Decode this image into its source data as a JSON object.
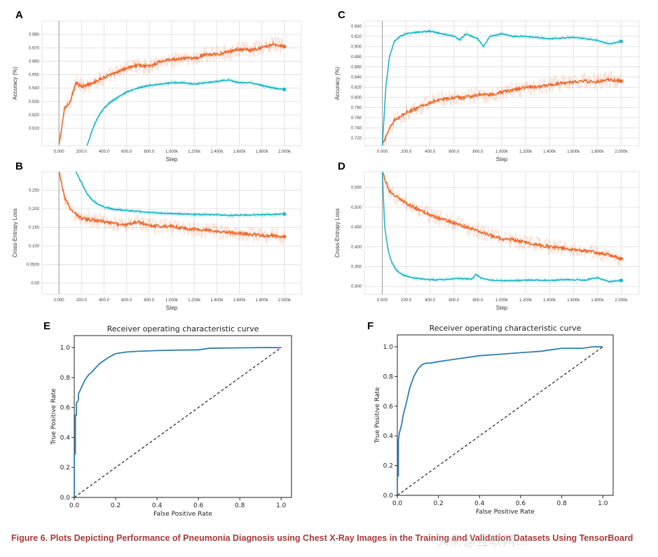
{
  "caption": "Figure 6.  Plots Depicting Performance of Pneumonia Diagnosis using Chest X-Ray Images in the Training and Validation Datasets Using TensorBoard",
  "watermark": "头条@互联网...",
  "colors": {
    "orange": "#ee6a2e",
    "teal": "#20b7c6",
    "roc": "#2e7eb2",
    "caption": "#a83a3a"
  },
  "chart_data": [
    {
      "id": "A",
      "type": "line",
      "letter": "A",
      "title": "",
      "xlabel": "Step",
      "ylabel": "Accuracy (%)",
      "xlim": [
        -150,
        2150
      ],
      "ylim": [
        0.897,
        0.99
      ],
      "xticks": [
        0,
        200,
        400,
        600,
        800,
        1000,
        1200,
        1400,
        1600,
        1800,
        2000
      ],
      "xtick_labels": [
        "0.000",
        "200.0",
        "400.0",
        "600.0",
        "800.0",
        "1.000k",
        "1.200k",
        "1.400k",
        "1.600k",
        "1.800k",
        "2.000k"
      ],
      "yticks": [
        0.91,
        0.92,
        0.93,
        0.94,
        0.95,
        0.96,
        0.97,
        0.98
      ],
      "ytick_labels": [
        "0.910",
        "0.920",
        "0.930",
        "0.940",
        "0.950",
        "0.960",
        "0.970",
        "0.980"
      ],
      "grid": true,
      "series": [
        {
          "color": "orange",
          "x": [
            0,
            50,
            100,
            150,
            200,
            300,
            400,
            500,
            600,
            700,
            800,
            900,
            1000,
            1100,
            1200,
            1300,
            1400,
            1500,
            1600,
            1700,
            1800,
            1900,
            1950,
            2000
          ],
          "y": [
            0.897,
            0.925,
            0.93,
            0.944,
            0.941,
            0.944,
            0.948,
            0.951,
            0.955,
            0.957,
            0.956,
            0.96,
            0.961,
            0.962,
            0.962,
            0.965,
            0.965,
            0.967,
            0.969,
            0.968,
            0.97,
            0.973,
            0.972,
            0.971
          ]
        },
        {
          "color": "teal",
          "x": [
            250,
            300,
            350,
            400,
            450,
            500,
            600,
            700,
            800,
            900,
            1000,
            1100,
            1200,
            1300,
            1400,
            1500,
            1550,
            1600,
            1700,
            1800,
            1900,
            2000
          ],
          "y": [
            0.897,
            0.91,
            0.919,
            0.925,
            0.929,
            0.932,
            0.937,
            0.94,
            0.942,
            0.943,
            0.944,
            0.944,
            0.943,
            0.944,
            0.945,
            0.946,
            0.945,
            0.944,
            0.944,
            0.942,
            0.94,
            0.939
          ]
        }
      ]
    },
    {
      "id": "B",
      "type": "line",
      "letter": "B",
      "title": "",
      "xlabel": "Step",
      "ylabel": "Cross-Entropy Loss",
      "xlim": [
        -150,
        2150
      ],
      "ylim": [
        -0.03,
        0.3
      ],
      "xticks": [
        0,
        200,
        400,
        600,
        800,
        1000,
        1200,
        1400,
        1600,
        1800,
        2000
      ],
      "xtick_labels": [
        "0.000",
        "200.0",
        "400.0",
        "600.0",
        "800.0",
        "1.000k",
        "1.200k",
        "1.400k",
        "1.600k",
        "1.800k",
        "2.000k"
      ],
      "yticks": [
        0,
        0.05,
        0.1,
        0.15,
        0.2,
        0.25
      ],
      "ytick_labels": [
        "0.00",
        "0.0500",
        "0.100",
        "0.150",
        "0.200",
        "0.250"
      ],
      "grid": true,
      "series": [
        {
          "color": "orange",
          "x": [
            0,
            50,
            100,
            150,
            200,
            300,
            400,
            500,
            600,
            700,
            800,
            900,
            1000,
            1100,
            1200,
            1300,
            1400,
            1500,
            1600,
            1700,
            1800,
            1900,
            2000
          ],
          "y": [
            0.3,
            0.23,
            0.2,
            0.185,
            0.175,
            0.17,
            0.165,
            0.16,
            0.157,
            0.165,
            0.155,
            0.153,
            0.153,
            0.148,
            0.145,
            0.143,
            0.14,
            0.136,
            0.134,
            0.131,
            0.129,
            0.127,
            0.125
          ]
        },
        {
          "color": "teal",
          "x": [
            150,
            200,
            250,
            300,
            350,
            400,
            500,
            600,
            700,
            800,
            900,
            1000,
            1200,
            1400,
            1500,
            1600,
            1800,
            2000
          ],
          "y": [
            0.3,
            0.27,
            0.24,
            0.222,
            0.212,
            0.205,
            0.198,
            0.195,
            0.193,
            0.19,
            0.188,
            0.187,
            0.185,
            0.184,
            0.182,
            0.183,
            0.184,
            0.186
          ]
        }
      ]
    },
    {
      "id": "C",
      "type": "line",
      "letter": "C",
      "title": "",
      "xlabel": "Step",
      "ylabel": "Accuracy (%)",
      "xlim": [
        -150,
        2150
      ],
      "ylim": [
        0.705,
        0.95
      ],
      "xticks": [
        0,
        200,
        400,
        600,
        800,
        1000,
        1200,
        1400,
        1600,
        1800,
        2000
      ],
      "xtick_labels": [
        "0.000",
        "200.0",
        "400.0",
        "600.0",
        "800.0",
        "1.000k",
        "1.200k",
        "1.400k",
        "1.600k",
        "1.800k",
        "2.000k"
      ],
      "yticks": [
        0.72,
        0.74,
        0.76,
        0.78,
        0.8,
        0.82,
        0.84,
        0.86,
        0.88,
        0.9,
        0.92,
        0.94
      ],
      "ytick_labels": [
        "0.720",
        "0.740",
        "0.760",
        "0.780",
        "0.800",
        "0.820",
        "0.840",
        "0.860",
        "0.880",
        "0.900",
        "0.920",
        "0.940"
      ],
      "grid": true,
      "series": [
        {
          "color": "orange",
          "x": [
            0,
            50,
            100,
            200,
            300,
            400,
            500,
            600,
            700,
            800,
            900,
            1000,
            1100,
            1200,
            1300,
            1400,
            1500,
            1600,
            1700,
            1800,
            1900,
            2000
          ],
          "y": [
            0.705,
            0.735,
            0.755,
            0.77,
            0.78,
            0.79,
            0.795,
            0.8,
            0.8,
            0.805,
            0.805,
            0.81,
            0.815,
            0.82,
            0.82,
            0.825,
            0.828,
            0.83,
            0.832,
            0.83,
            0.835,
            0.832
          ]
        },
        {
          "color": "teal",
          "x": [
            0,
            30,
            60,
            100,
            150,
            200,
            300,
            400,
            500,
            600,
            650,
            700,
            800,
            850,
            900,
            1000,
            1100,
            1200,
            1400,
            1600,
            1800,
            1900,
            2000
          ],
          "y": [
            0.705,
            0.82,
            0.88,
            0.91,
            0.92,
            0.925,
            0.928,
            0.93,
            0.925,
            0.92,
            0.913,
            0.925,
            0.915,
            0.9,
            0.92,
            0.925,
            0.92,
            0.92,
            0.915,
            0.918,
            0.912,
            0.905,
            0.91
          ]
        }
      ]
    },
    {
      "id": "D",
      "type": "line",
      "letter": "D",
      "title": "",
      "xlabel": "Step",
      "ylabel": "Cross-Entropy Loss",
      "xlim": [
        -150,
        2150
      ],
      "ylim": [
        0.28,
        0.59
      ],
      "xticks": [
        0,
        200,
        400,
        600,
        800,
        1000,
        1200,
        1400,
        1600,
        1800,
        2000
      ],
      "xtick_labels": [
        "0.000",
        "200.0",
        "400.0",
        "600.0",
        "800.0",
        "1.000k",
        "1.200k",
        "1.400k",
        "1.600k",
        "1.800k",
        "2.000k"
      ],
      "yticks": [
        0.3,
        0.35,
        0.4,
        0.45,
        0.5,
        0.55
      ],
      "ytick_labels": [
        "0.300",
        "0.350",
        "0.400",
        "0.450",
        "0.500",
        "0.550"
      ],
      "grid": true,
      "series": [
        {
          "color": "orange",
          "x": [
            0,
            50,
            100,
            200,
            300,
            400,
            500,
            600,
            700,
            800,
            900,
            1000,
            1100,
            1200,
            1300,
            1400,
            1500,
            1600,
            1700,
            1800,
            1900,
            2000
          ],
          "y": [
            0.59,
            0.545,
            0.53,
            0.51,
            0.495,
            0.48,
            0.47,
            0.46,
            0.45,
            0.44,
            0.43,
            0.42,
            0.418,
            0.41,
            0.405,
            0.4,
            0.398,
            0.392,
            0.39,
            0.385,
            0.38,
            0.37
          ]
        },
        {
          "color": "teal",
          "x": [
            0,
            20,
            50,
            80,
            120,
            180,
            250,
            350,
            450,
            550,
            650,
            750,
            780,
            850,
            950,
            1050,
            1150,
            1250,
            1400,
            1550,
            1700,
            1800,
            1900,
            2000
          ],
          "y": [
            0.59,
            0.45,
            0.39,
            0.36,
            0.34,
            0.328,
            0.322,
            0.318,
            0.316,
            0.318,
            0.32,
            0.318,
            0.33,
            0.318,
            0.315,
            0.314,
            0.315,
            0.316,
            0.315,
            0.317,
            0.316,
            0.322,
            0.312,
            0.315
          ]
        }
      ]
    },
    {
      "id": "E",
      "type": "line",
      "letter": "E",
      "title": "Receiver operating characteristic curve",
      "xlabel": "False Positive Rate",
      "ylabel": "True Positive Rate",
      "xlim": [
        0,
        1.05
      ],
      "ylim": [
        0,
        1.08
      ],
      "xticks": [
        0,
        0.2,
        0.4,
        0.6,
        0.8,
        1.0
      ],
      "xtick_labels": [
        "0.0",
        "0.2",
        "0.4",
        "0.6",
        "0.8",
        "1.0"
      ],
      "yticks": [
        0,
        0.2,
        0.4,
        0.6,
        0.8,
        1.0
      ],
      "ytick_labels": [
        "0.0",
        "0.2",
        "0.4",
        "0.6",
        "0.8",
        "1.0"
      ],
      "grid": false,
      "series": [
        {
          "color": "roc",
          "x": [
            0,
            0,
            0.005,
            0.005,
            0.01,
            0.01,
            0.02,
            0.02,
            0.03,
            0.04,
            0.05,
            0.06,
            0.07,
            0.08,
            0.1,
            0.12,
            0.14,
            0.16,
            0.2,
            0.25,
            0.3,
            0.4,
            0.5,
            0.6,
            0.65,
            0.7,
            0.8,
            0.9,
            1.0
          ],
          "y": [
            0,
            0.29,
            0.29,
            0.55,
            0.55,
            0.63,
            0.65,
            0.69,
            0.72,
            0.75,
            0.78,
            0.8,
            0.82,
            0.83,
            0.86,
            0.89,
            0.91,
            0.93,
            0.96,
            0.97,
            0.975,
            0.98,
            0.983,
            0.985,
            0.995,
            0.997,
            0.998,
            1.0,
            1.0
          ]
        },
        {
          "color": "dashed",
          "x": [
            0,
            1
          ],
          "y": [
            0,
            1
          ]
        }
      ]
    },
    {
      "id": "F",
      "type": "line",
      "letter": "F",
      "title": "Receiver operating characteristic curve",
      "xlabel": "False Positive Rate",
      "ylabel": "True Positive Rate",
      "xlim": [
        0,
        1.05
      ],
      "ylim": [
        0,
        1.08
      ],
      "xticks": [
        0,
        0.2,
        0.4,
        0.6,
        0.8,
        1.0
      ],
      "xtick_labels": [
        "0.0",
        "0.2",
        "0.4",
        "0.6",
        "0.8",
        "1.0"
      ],
      "yticks": [
        0,
        0.2,
        0.4,
        0.6,
        0.8,
        1.0
      ],
      "ytick_labels": [
        "0.0",
        "0.2",
        "0.4",
        "0.6",
        "0.8",
        "1.0"
      ],
      "grid": false,
      "series": [
        {
          "color": "roc",
          "x": [
            0,
            0,
            0.005,
            0.005,
            0.01,
            0.02,
            0.03,
            0.04,
            0.05,
            0.06,
            0.07,
            0.08,
            0.1,
            0.12,
            0.14,
            0.16,
            0.2,
            0.25,
            0.3,
            0.35,
            0.4,
            0.5,
            0.6,
            0.7,
            0.75,
            0.8,
            0.9,
            0.95,
            1.0
          ],
          "y": [
            0,
            0.13,
            0.13,
            0.37,
            0.42,
            0.47,
            0.55,
            0.6,
            0.66,
            0.72,
            0.76,
            0.8,
            0.85,
            0.88,
            0.89,
            0.89,
            0.9,
            0.91,
            0.92,
            0.93,
            0.94,
            0.95,
            0.96,
            0.97,
            0.98,
            0.99,
            0.99,
            1.0,
            1.0
          ]
        },
        {
          "color": "dashed",
          "x": [
            0,
            1
          ],
          "y": [
            0,
            1
          ]
        }
      ]
    }
  ]
}
